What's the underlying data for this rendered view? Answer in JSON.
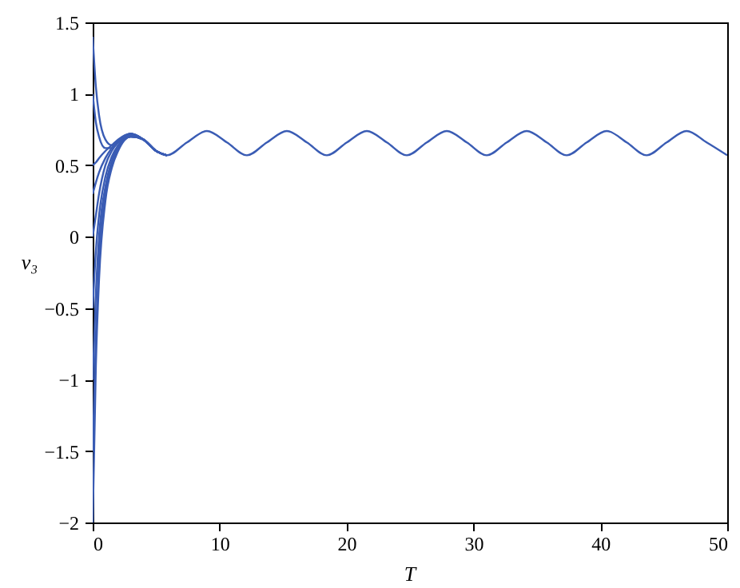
{
  "chart_data": {
    "type": "line",
    "xlabel": "T",
    "ylabel": "v₃",
    "xlim": [
      0,
      50
    ],
    "xticks": [
      0,
      10,
      20,
      30,
      40,
      50
    ],
    "ylim": [
      -2,
      1.5
    ],
    "yticks": [
      {
        "value": -2,
        "label": "−2"
      },
      {
        "value": -1.5,
        "label": "−1.5"
      },
      {
        "value": -1,
        "label": "−1"
      },
      {
        "value": -0.5,
        "label": "−0.5"
      },
      0,
      0.5,
      1,
      1.5
    ],
    "grid": false,
    "marker": "none",
    "line_style": "solid",
    "series": [
      {
        "color": "#3a5cb4",
        "x": [
          0,
          0.25,
          0.5,
          1,
          1.5,
          2,
          3,
          4,
          5,
          5.85,
          7.43,
          9.0,
          10.58,
          12.15,
          13.73,
          15.3,
          16.88,
          18.45,
          20.03,
          21.6,
          23.18,
          24.75,
          26.33,
          27.9,
          29.48,
          31.05,
          32.63,
          34.2,
          35.78,
          37.35,
          38.93,
          40.5,
          42.08,
          43.65,
          45.23,
          46.8,
          48.38,
          50
        ],
        "values": [
          1.4,
          1.05,
          0.85,
          0.68,
          0.64,
          0.67,
          0.72,
          0.68,
          0.6,
          0.57,
          0.66,
          0.74,
          0.66,
          0.57,
          0.66,
          0.74,
          0.66,
          0.57,
          0.66,
          0.74,
          0.66,
          0.57,
          0.66,
          0.74,
          0.66,
          0.57,
          0.66,
          0.74,
          0.66,
          0.57,
          0.66,
          0.74,
          0.66,
          0.57,
          0.66,
          0.74,
          0.66,
          0.57
        ]
      },
      {
        "color": "#3a5cb4",
        "x": [
          0,
          0.25,
          0.5,
          1,
          1.5,
          2,
          3,
          4,
          5,
          5.85
        ],
        "values": [
          1.0,
          0.8,
          0.7,
          0.62,
          0.62,
          0.66,
          0.72,
          0.68,
          0.6,
          0.57
        ]
      },
      {
        "color": "#3a5cb4",
        "x": [
          0,
          0.25,
          0.5,
          1,
          1.5,
          2,
          3,
          4,
          5,
          5.85
        ],
        "values": [
          0.5,
          0.52,
          0.55,
          0.6,
          0.64,
          0.68,
          0.72,
          0.68,
          0.6,
          0.57
        ]
      },
      {
        "color": "#3a5cb4",
        "x": [
          0,
          0.25,
          0.5,
          1,
          1.5,
          2,
          3,
          4,
          5,
          5.85
        ],
        "values": [
          0.3,
          0.38,
          0.45,
          0.55,
          0.62,
          0.67,
          0.72,
          0.68,
          0.6,
          0.57
        ]
      },
      {
        "color": "#3a5cb4",
        "x": [
          0,
          0.25,
          0.5,
          1,
          1.5,
          2,
          3,
          4,
          5,
          5.85
        ],
        "values": [
          0,
          0.15,
          0.3,
          0.5,
          0.6,
          0.66,
          0.71,
          0.68,
          0.6,
          0.57
        ]
      },
      {
        "color": "#3a5cb4",
        "x": [
          0,
          0.25,
          0.5,
          1,
          1.5,
          2,
          3,
          4,
          5,
          5.85
        ],
        "values": [
          -0.5,
          -0.1,
          0.15,
          0.42,
          0.56,
          0.64,
          0.71,
          0.68,
          0.6,
          0.57
        ]
      },
      {
        "color": "#3a5cb4",
        "x": [
          0,
          0.25,
          0.5,
          1,
          1.5,
          2,
          3,
          4,
          5,
          5.85
        ],
        "values": [
          -1,
          -0.4,
          0,
          0.35,
          0.53,
          0.63,
          0.7,
          0.68,
          0.6,
          0.57
        ]
      },
      {
        "color": "#3a5cb4",
        "x": [
          0,
          0.25,
          0.5,
          1,
          1.5,
          2,
          3,
          4,
          5,
          5.85
        ],
        "values": [
          -1.5,
          -0.7,
          -0.15,
          0.3,
          0.5,
          0.62,
          0.7,
          0.68,
          0.6,
          0.57
        ]
      },
      {
        "color": "#3a5cb4",
        "x": [
          0,
          0.25,
          0.5,
          1,
          1.5,
          2,
          3,
          4,
          5,
          5.85
        ],
        "values": [
          -2,
          -0.9,
          -0.3,
          0.25,
          0.48,
          0.6,
          0.7,
          0.68,
          0.6,
          0.57
        ]
      }
    ]
  }
}
